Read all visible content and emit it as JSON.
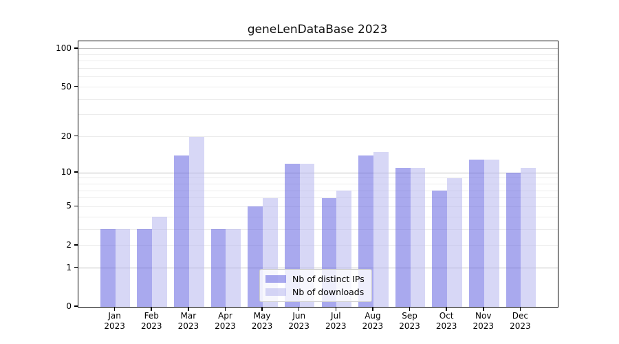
{
  "chart_data": {
    "type": "bar",
    "title": "geneLenDataBase 2023",
    "x_months": [
      "Jan",
      "Feb",
      "Mar",
      "Apr",
      "May",
      "Jun",
      "Jul",
      "Aug",
      "Sep",
      "Oct",
      "Nov",
      "Dec"
    ],
    "x_year": "2023",
    "series": [
      {
        "name": "Nb of distinct IPs",
        "color": "#6262e0",
        "values": [
          3,
          3,
          14,
          3,
          5,
          12,
          6,
          14,
          11,
          7,
          13,
          10
        ]
      },
      {
        "name": "Nb of downloads",
        "color": "#b6b6ee",
        "values": [
          3,
          4,
          20,
          3,
          6,
          12,
          7,
          15,
          11,
          9,
          13,
          11
        ]
      }
    ],
    "y_ticks": [
      0,
      1,
      2,
      5,
      10,
      20,
      50,
      100
    ],
    "y_scale": "log1p",
    "ylim": [
      0,
      115
    ],
    "grid": "on",
    "legend_position": "lower center",
    "bar_alpha": 0.55,
    "major_grid_color": "#bbbbbb",
    "minor_grid_color": "#ececec"
  }
}
